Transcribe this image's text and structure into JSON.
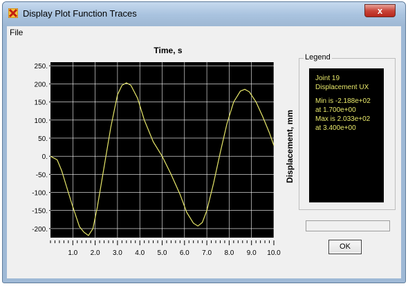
{
  "window": {
    "title": "Display Plot Function Traces",
    "close_label": "x"
  },
  "menu": {
    "file": "File"
  },
  "plot": {
    "title": "Time, s",
    "ylabel": "Displacement, mm"
  },
  "legend": {
    "title": "Legend",
    "lines": [
      "Joint 19",
      "Displacement UX",
      "Min is -2.188e+02",
      "at 1.700e+00",
      "Max is 2.033e+02",
      "at 3.400e+00"
    ]
  },
  "buttons": {
    "ok": "OK"
  },
  "colors": {
    "plot_bg": "#000000",
    "trace": "#e8e86a",
    "grid": "#ffffff"
  },
  "chart_data": {
    "type": "line",
    "title": "Time, s",
    "ylabel": "Displacement, mm",
    "xlim": [
      0.0,
      10.0
    ],
    "ylim": [
      -225,
      260
    ],
    "xticks": [
      "1.0",
      "2.0",
      "3.0",
      "4.0",
      "5.0",
      "6.0",
      "7.0",
      "8.0",
      "9.0",
      "10.0"
    ],
    "yticks": [
      "250.",
      "200.",
      "150.",
      "100.",
      "50.",
      "0.",
      "-50.",
      "-100.",
      "-150.",
      "-200."
    ],
    "grid": true,
    "series": [
      {
        "x": [
          0.0,
          0.3,
          0.5,
          0.8,
          1.0,
          1.3,
          1.5,
          1.7,
          1.9,
          2.1,
          2.4,
          2.7,
          3.0,
          3.2,
          3.4,
          3.6,
          3.9,
          4.2,
          4.6,
          5.0,
          5.4,
          5.8,
          6.1,
          6.4,
          6.6,
          6.8,
          7.0,
          7.3,
          7.6,
          7.9,
          8.2,
          8.5,
          8.7,
          8.9,
          9.2,
          9.5,
          9.8,
          10.0
        ],
        "y": [
          0,
          -10,
          -40,
          -100,
          -140,
          -195,
          -210,
          -219,
          -200,
          -140,
          -30,
          80,
          170,
          196,
          203,
          196,
          160,
          100,
          40,
          0,
          -50,
          -105,
          -155,
          -185,
          -193,
          -183,
          -150,
          -75,
          10,
          90,
          150,
          180,
          185,
          178,
          150,
          110,
          65,
          30
        ]
      }
    ]
  }
}
